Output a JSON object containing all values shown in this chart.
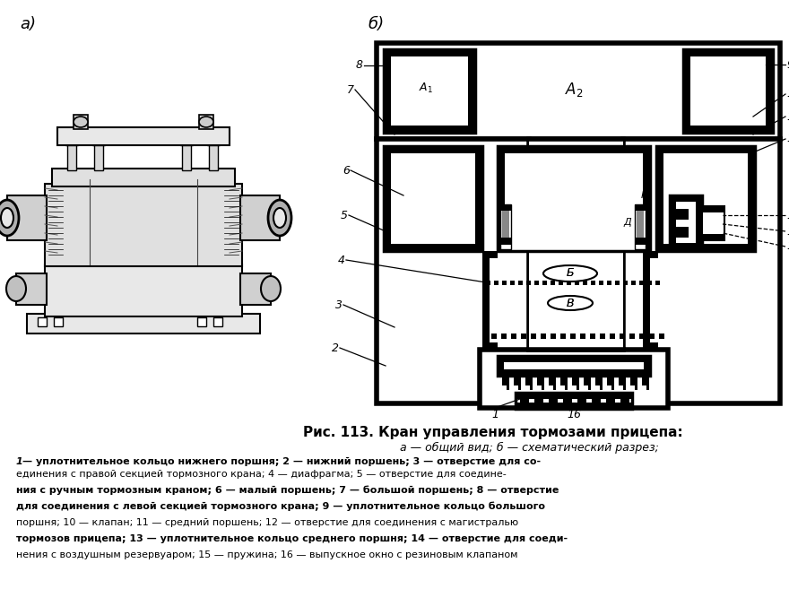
{
  "title": "Рис. 113. Кран управления тормозами прицепа:",
  "subtitle": "а — общий вид; б — схематический разрез;",
  "caption_bold": "1",
  "caption_line1_bold": "1 — уплотнительное кольцо нижнего поршня; 2 — нижний поршень; 3 — отверстие для со-",
  "caption_lines": [
    "единения с правой секцией тормозного крана; 4 — диафрагма; 5 — отверстие для соедине-",
    "ния с ручным тормозным краном; 6 — малый поршень; 7 — большой поршень; 8 — отверстие",
    "для соединения с левой секцией тормозного крана; 9 — уплотнительное кольцо большого",
    "поршня; 10 — клапан; 11 — средний поршень; 12 — отверстие для соединения с магистралью",
    "тормозов прицепа; 13 — уплотнительное кольцо среднего поршня; 14 — отверстие для соеди-",
    "нения с воздушным резервуаром; 15 — пружина; 16 — выпускное окно с резиновым клапаном"
  ],
  "label_a": "а)",
  "label_b": "б)",
  "bg_color": "#ffffff"
}
